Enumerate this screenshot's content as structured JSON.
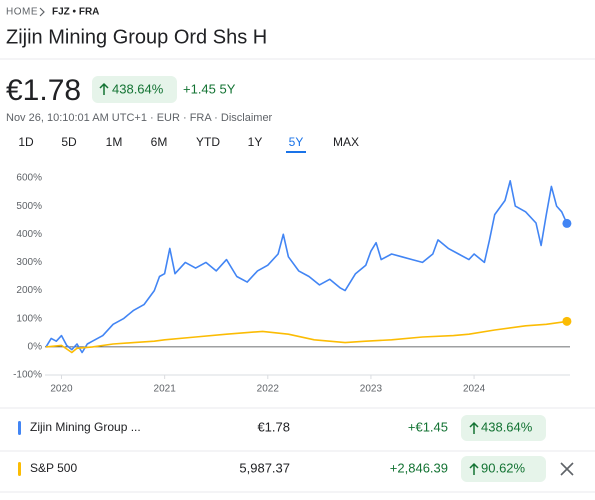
{
  "breadcrumb": {
    "home": "HOME",
    "ticker": "FJZ • FRA"
  },
  "header": {
    "title": "Zijin Mining Group Ord Shs H",
    "price": "€1.78",
    "change_percent": "438.64%",
    "change": "+1.45 5Y",
    "meta": "Nov 26, 10:10:01 AM UTC+1 · EUR · FRA · Disclaimer"
  },
  "ranges": [
    {
      "label": "1D",
      "selected": false
    },
    {
      "label": "5D",
      "selected": false
    },
    {
      "label": "1M",
      "selected": false
    },
    {
      "label": "6M",
      "selected": false
    },
    {
      "label": "YTD",
      "selected": false
    },
    {
      "label": "1Y",
      "selected": false
    },
    {
      "label": "5Y",
      "selected": true
    },
    {
      "label": "MAX",
      "selected": false
    }
  ],
  "chart_data": {
    "type": "line",
    "xlim": [
      2019.84,
      2024.93
    ],
    "xticks": [
      2020,
      2021,
      2022,
      2023,
      2024
    ],
    "ylim": [
      -100,
      600
    ],
    "yticks": [
      {
        "value": -100,
        "label": "-100%"
      },
      {
        "value": 0,
        "label": "0%"
      },
      {
        "value": 100,
        "label": "100%"
      },
      {
        "value": 200,
        "label": "200%"
      },
      {
        "value": 300,
        "label": "300%"
      },
      {
        "value": 400,
        "label": "400%"
      },
      {
        "value": 500,
        "label": "500%"
      },
      {
        "value": 600,
        "label": "600%"
      }
    ],
    "grid": false,
    "series": [
      {
        "name": "Zijin Mining Group ...",
        "color": "#4285f4",
        "x": [
          2019.85,
          2019.9,
          2019.95,
          2020.0,
          2020.05,
          2020.1,
          2020.15,
          2020.2,
          2020.25,
          2020.3,
          2020.4,
          2020.5,
          2020.6,
          2020.7,
          2020.8,
          2020.9,
          2020.95,
          2021.0,
          2021.05,
          2021.1,
          2021.2,
          2021.3,
          2021.4,
          2021.5,
          2021.6,
          2021.7,
          2021.8,
          2021.9,
          2022.0,
          2022.1,
          2022.15,
          2022.2,
          2022.3,
          2022.4,
          2022.5,
          2022.6,
          2022.7,
          2022.75,
          2022.85,
          2022.95,
          2023.0,
          2023.05,
          2023.1,
          2023.2,
          2023.3,
          2023.4,
          2023.5,
          2023.6,
          2023.65,
          2023.75,
          2023.85,
          2023.95,
          2024.0,
          2024.1,
          2024.15,
          2024.2,
          2024.3,
          2024.35,
          2024.4,
          2024.5,
          2024.6,
          2024.65,
          2024.7,
          2024.75,
          2024.8,
          2024.85,
          2024.9
        ],
        "values": [
          0,
          30,
          20,
          40,
          5,
          -10,
          10,
          -20,
          10,
          20,
          40,
          80,
          100,
          130,
          150,
          200,
          250,
          260,
          350,
          260,
          300,
          280,
          300,
          270,
          310,
          250,
          230,
          270,
          290,
          330,
          400,
          320,
          270,
          250,
          220,
          240,
          210,
          200,
          260,
          290,
          340,
          370,
          310,
          330,
          320,
          310,
          300,
          330,
          380,
          350,
          330,
          310,
          330,
          300,
          380,
          470,
          520,
          590,
          500,
          480,
          440,
          360,
          470,
          570,
          500,
          480,
          438.64
        ]
      },
      {
        "name": "S&P 500",
        "color": "#fbbc04",
        "x": [
          2019.85,
          2020.0,
          2020.1,
          2020.15,
          2020.3,
          2020.5,
          2020.7,
          2020.9,
          2021.0,
          2021.3,
          2021.6,
          2021.95,
          2022.2,
          2022.45,
          2022.75,
          2022.95,
          2023.2,
          2023.5,
          2023.8,
          2023.95,
          2024.2,
          2024.5,
          2024.7,
          2024.9
        ],
        "values": [
          0,
          5,
          -20,
          -5,
          0,
          10,
          15,
          20,
          25,
          35,
          45,
          55,
          45,
          25,
          15,
          20,
          25,
          35,
          40,
          45,
          60,
          75,
          80,
          90.62
        ]
      }
    ]
  },
  "comparison": {
    "rows": [
      {
        "price": "€1.78",
        "change": "+€1.45",
        "change_percent": "438.64%"
      },
      {
        "price": "5,987.37",
        "change": "+2,846.39",
        "change_percent": "90.62%"
      }
    ]
  }
}
